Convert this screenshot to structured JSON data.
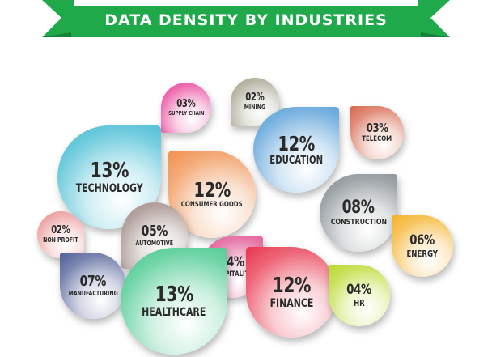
{
  "title": "DATA DENSITY BY INDUSTRIES",
  "colors": {
    "banner": "#1fa94a",
    "banner_dark": "#14803a"
  },
  "chart_data": {
    "type": "bubble",
    "title": "DATA DENSITY BY INDUSTRIES",
    "series": [
      {
        "label": "SUPPLY CHAIN",
        "display": "03%",
        "value": 3,
        "color": "#e83d96"
      },
      {
        "label": "MINING",
        "display": "02%",
        "value": 2,
        "color": "#a09d87"
      },
      {
        "label": "TELECOM",
        "display": "03%",
        "value": 3,
        "color": "#d7654c"
      },
      {
        "label": "TECHNOLOGY",
        "display": "13%",
        "value": 13,
        "color": "#3db9d2"
      },
      {
        "label": "EDUCATION",
        "display": "12%",
        "value": 12,
        "color": "#4f99d6"
      },
      {
        "label": "CONSUMER GOODS",
        "display": "12%",
        "value": 12,
        "color": "#f08f4d"
      },
      {
        "label": "CONSTRUCTION",
        "display": "08%",
        "value": 8,
        "color": "#7f878c"
      },
      {
        "label": "NON PROFIT",
        "display": "02%",
        "value": 2,
        "color": "#e98f8f"
      },
      {
        "label": "AUTOMOTIVE",
        "display": "05%",
        "value": 5,
        "color": "#9b8580"
      },
      {
        "label": "ENERGY",
        "display": "06%",
        "value": 6,
        "color": "#f4b026"
      },
      {
        "label": "HOSPITALITY",
        "display": "04%",
        "value": 4,
        "color": "#df4f8d"
      },
      {
        "label": "MANUFACTURING",
        "display": "07%",
        "value": 7,
        "color": "#4d5e96"
      },
      {
        "label": "HEALTHCARE",
        "display": "13%",
        "value": 13,
        "color": "#3dc688"
      },
      {
        "label": "FINANCE",
        "display": "12%",
        "value": 12,
        "color": "#e8334b"
      },
      {
        "label": "HR",
        "display": "04%",
        "value": 4,
        "color": "#b8d92b"
      }
    ]
  }
}
